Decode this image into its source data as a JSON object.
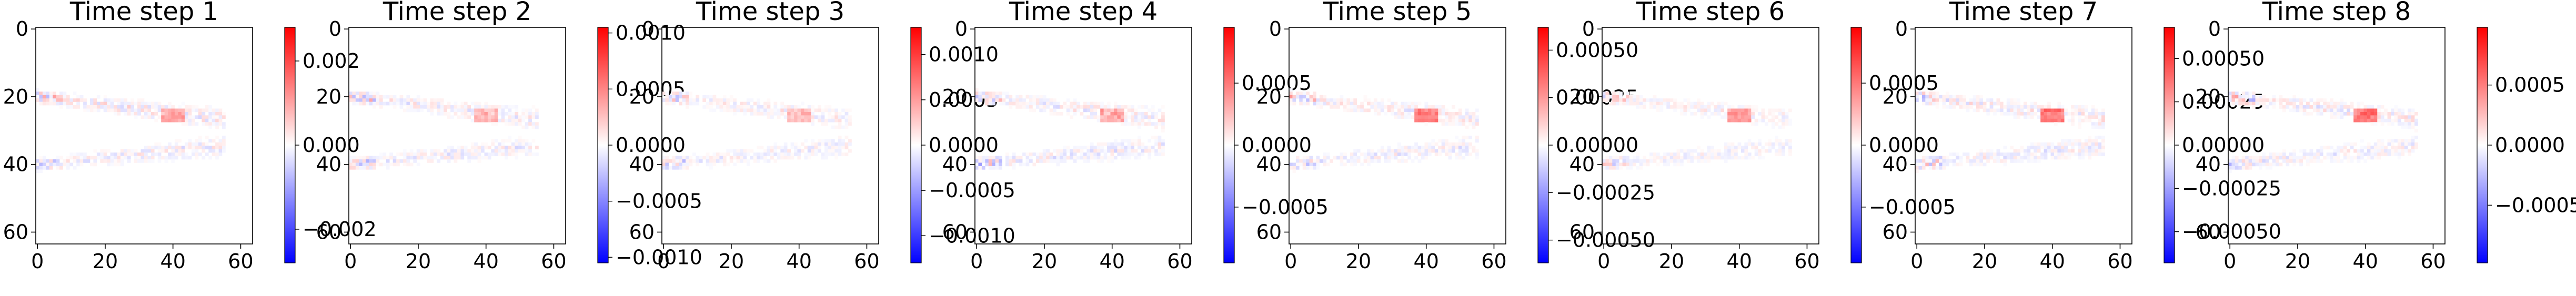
{
  "chart_data": [
    {
      "type": "heatmap",
      "title": "Time step 1",
      "xticks": [
        "0",
        "20",
        "40",
        "60"
      ],
      "yticks": [
        "0",
        "20",
        "40",
        "60"
      ],
      "xlim": [
        0,
        64
      ],
      "ylim": [
        64,
        0
      ],
      "colorbar": {
        "cmap": "bwr",
        "range": [
          -0.0028,
          0.0028
        ],
        "ticks": [
          "0.002",
          "0.000",
          "−0.002"
        ],
        "tick_values": [
          0.002,
          0.0,
          -0.002
        ]
      }
    },
    {
      "type": "heatmap",
      "title": "Time step 2",
      "xticks": [
        "0",
        "20",
        "40",
        "60"
      ],
      "yticks": [
        "0",
        "20",
        "40",
        "60"
      ],
      "xlim": [
        0,
        64
      ],
      "ylim": [
        64,
        0
      ],
      "colorbar": {
        "cmap": "bwr",
        "range": [
          -0.00105,
          0.00105
        ],
        "ticks": [
          "0.0010",
          "0.0005",
          "0.0000",
          "−0.0005",
          "−0.0010"
        ],
        "tick_values": [
          0.001,
          0.0005,
          0.0,
          -0.0005,
          -0.001
        ]
      }
    },
    {
      "type": "heatmap",
      "title": "Time step 3",
      "xticks": [
        "0",
        "20",
        "40",
        "60"
      ],
      "yticks": [
        "0",
        "20",
        "40",
        "60"
      ],
      "xlim": [
        0,
        64
      ],
      "ylim": [
        64,
        0
      ],
      "colorbar": {
        "cmap": "bwr",
        "range": [
          -0.0013,
          0.0013
        ],
        "ticks": [
          "0.0010",
          "0.0005",
          "0.0000",
          "−0.0005",
          "−0.0010"
        ],
        "tick_values": [
          0.001,
          0.0005,
          0.0,
          -0.0005,
          -0.001
        ]
      }
    },
    {
      "type": "heatmap",
      "title": "Time step 4",
      "xticks": [
        "0",
        "20",
        "40",
        "60"
      ],
      "yticks": [
        "0",
        "20",
        "40",
        "60"
      ],
      "xlim": [
        0,
        64
      ],
      "ylim": [
        64,
        0
      ],
      "colorbar": {
        "cmap": "bwr",
        "range": [
          -0.00095,
          0.00095
        ],
        "ticks": [
          "0.0005",
          "0.0000",
          "−0.0005"
        ],
        "tick_values": [
          0.0005,
          0.0,
          -0.0005
        ]
      }
    },
    {
      "type": "heatmap",
      "title": "Time step 5",
      "xticks": [
        "0",
        "20",
        "40",
        "60"
      ],
      "yticks": [
        "0",
        "20",
        "40",
        "60"
      ],
      "xlim": [
        0,
        64
      ],
      "ylim": [
        64,
        0
      ],
      "colorbar": {
        "cmap": "bwr",
        "range": [
          -0.00062,
          0.00062
        ],
        "ticks": [
          "0.00050",
          "0.00025",
          "0.00000",
          "−0.00025",
          "−0.00050"
        ],
        "tick_values": [
          0.0005,
          0.00025,
          0.0,
          -0.00025,
          -0.0005
        ]
      }
    },
    {
      "type": "heatmap",
      "title": "Time step 6",
      "xticks": [
        "0",
        "20",
        "40",
        "60"
      ],
      "yticks": [
        "0",
        "20",
        "40",
        "60"
      ],
      "xlim": [
        0,
        64
      ],
      "ylim": [
        64,
        0
      ],
      "colorbar": {
        "cmap": "bwr",
        "range": [
          -0.00095,
          0.00095
        ],
        "ticks": [
          "0.0005",
          "0.0000",
          "−0.0005"
        ],
        "tick_values": [
          0.0005,
          0.0,
          -0.0005
        ]
      }
    },
    {
      "type": "heatmap",
      "title": "Time step 7",
      "xticks": [
        "0",
        "20",
        "40",
        "60"
      ],
      "yticks": [
        "0",
        "20",
        "40",
        "60"
      ],
      "xlim": [
        0,
        64
      ],
      "ylim": [
        64,
        0
      ],
      "colorbar": {
        "cmap": "bwr",
        "range": [
          -0.00068,
          0.00068
        ],
        "ticks": [
          "0.00050",
          "0.00025",
          "0.00000",
          "−0.00025",
          "−0.00050"
        ],
        "tick_values": [
          0.0005,
          0.00025,
          0.0,
          -0.00025,
          -0.0005
        ]
      }
    },
    {
      "type": "heatmap",
      "title": "Time step 8",
      "xticks": [
        "0",
        "20",
        "40",
        "60"
      ],
      "yticks": [
        "0",
        "20",
        "40",
        "60"
      ],
      "xlim": [
        0,
        64
      ],
      "ylim": [
        64,
        0
      ],
      "colorbar": {
        "cmap": "bwr",
        "range": [
          -0.00098,
          0.00098
        ],
        "ticks": [
          "0.0005",
          "0.0000",
          "−0.0005"
        ],
        "tick_values": [
          0.0005,
          0.0,
          -0.0005
        ]
      }
    }
  ]
}
